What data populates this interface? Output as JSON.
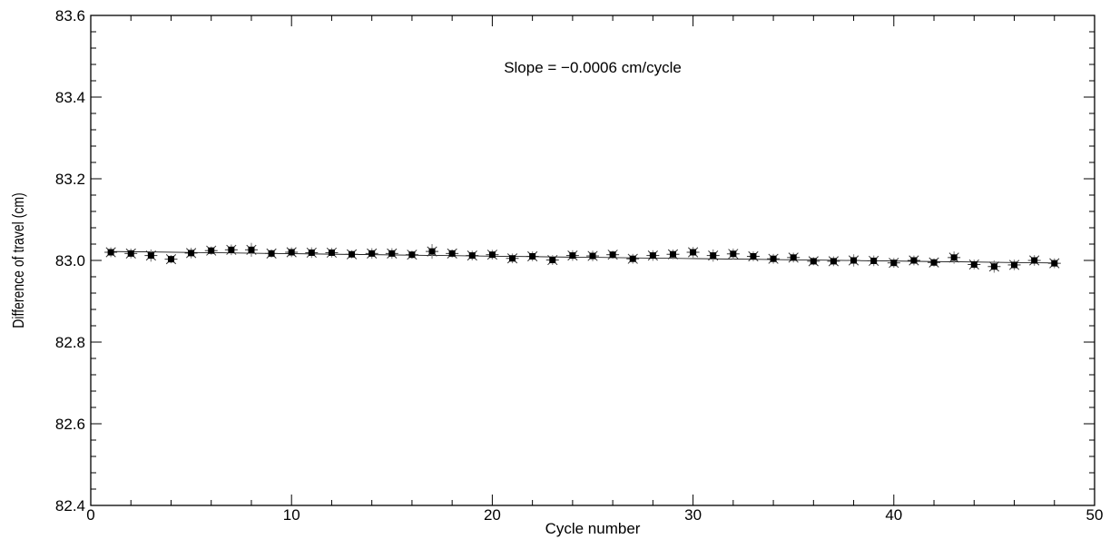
{
  "chart_data": {
    "type": "scatter",
    "title": "",
    "xlabel": "Cycle number",
    "ylabel": "Difference of travel  (cm)",
    "xlim": [
      0,
      50
    ],
    "ylim": [
      82.4,
      83.6
    ],
    "xticks": [
      0,
      10,
      20,
      30,
      40,
      50
    ],
    "yticks": [
      82.4,
      82.6,
      82.8,
      83.0,
      83.2,
      83.4,
      83.6
    ],
    "xtick_labels": [
      "0",
      "10",
      "20",
      "30",
      "40",
      "50"
    ],
    "ytick_labels": [
      "82.4",
      "82.6",
      "82.8",
      "83.0",
      "83.2",
      "83.4",
      "83.6"
    ],
    "grid": false,
    "annotation": "Slope = −0.0006 cm/cycle",
    "marker": "star with error bars",
    "colors": {
      "points": "#000000",
      "error_bars": "#888888",
      "fit_line": "#000000"
    },
    "series": [
      {
        "x": [
          1,
          2,
          3,
          4,
          5,
          6,
          7,
          8,
          9,
          10,
          11,
          12,
          13,
          14,
          15,
          16,
          17,
          18,
          19,
          20,
          21,
          22,
          23,
          24,
          25,
          26,
          27,
          28,
          29,
          30,
          31,
          32,
          33,
          34,
          35,
          36,
          37,
          38,
          39,
          40,
          41,
          42,
          43,
          44,
          45,
          46,
          47,
          48
        ],
        "y": [
          83.02,
          83.017,
          83.012,
          83.003,
          83.018,
          83.024,
          83.026,
          83.026,
          83.017,
          83.02,
          83.019,
          83.019,
          83.015,
          83.017,
          83.017,
          83.014,
          83.022,
          83.017,
          83.012,
          83.014,
          83.005,
          83.01,
          83.001,
          83.012,
          83.011,
          83.014,
          83.004,
          83.012,
          83.015,
          83.02,
          83.012,
          83.016,
          83.01,
          83.004,
          83.007,
          82.998,
          82.998,
          83.0,
          82.999,
          82.994,
          83.0,
          82.995,
          83.007,
          82.99,
          82.985,
          82.989,
          83.0,
          82.993
        ],
        "err": [
          0.012,
          0.012,
          0.015,
          0.01,
          0.013,
          0.01,
          0.013,
          0.017,
          0.01,
          0.012,
          0.013,
          0.012,
          0.01,
          0.013,
          0.013,
          0.01,
          0.018,
          0.01,
          0.012,
          0.012,
          0.012,
          0.012,
          0.012,
          0.013,
          0.013,
          0.01,
          0.012,
          0.013,
          0.012,
          0.013,
          0.015,
          0.013,
          0.012,
          0.012,
          0.012,
          0.01,
          0.012,
          0.015,
          0.013,
          0.012,
          0.012,
          0.01,
          0.015,
          0.012,
          0.015,
          0.013,
          0.013,
          0.012
        ]
      }
    ],
    "fit": {
      "slope": -0.0006,
      "intercept": 83.0225
    }
  }
}
